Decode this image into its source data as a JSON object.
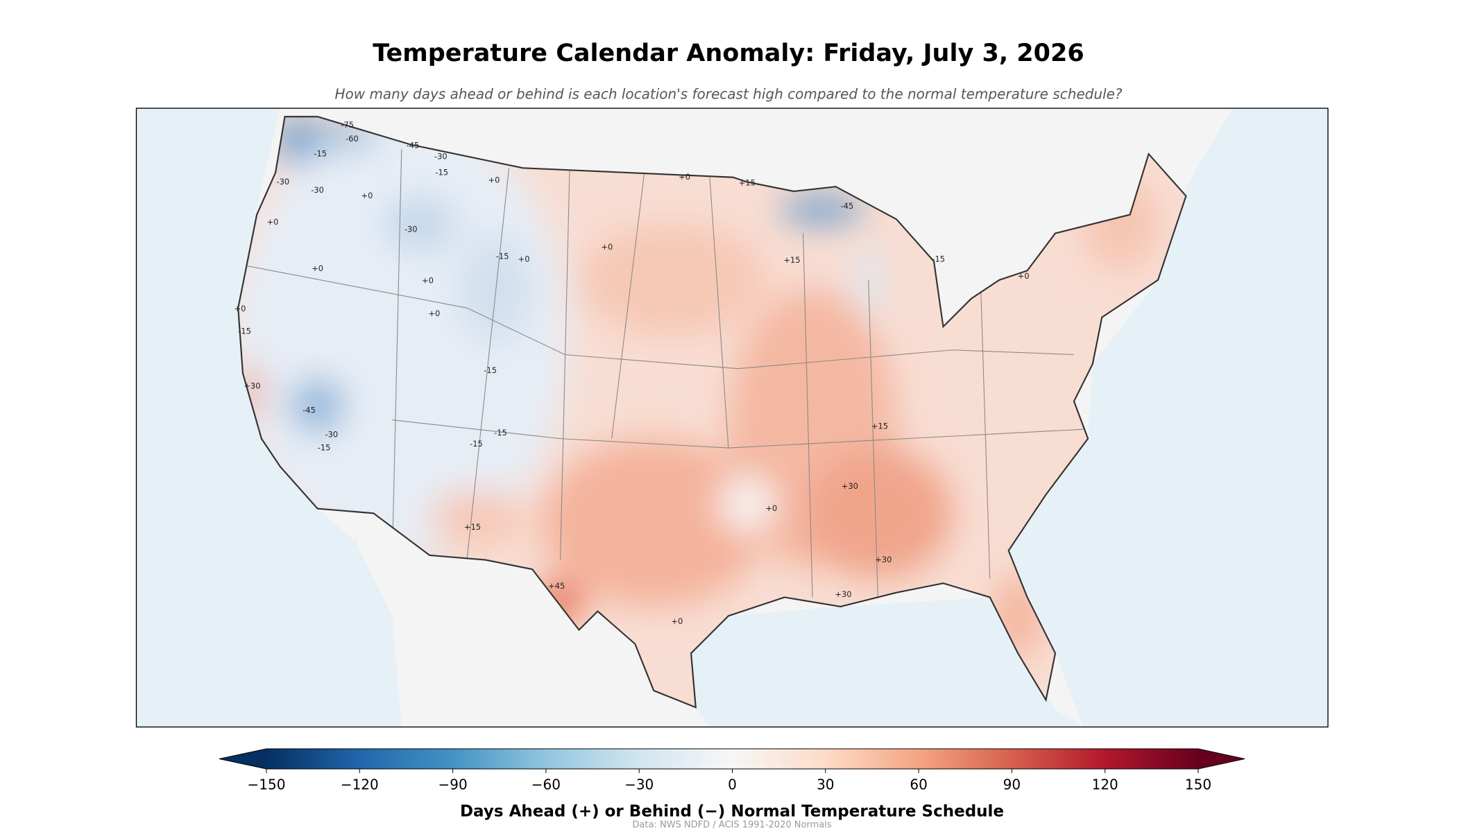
{
  "title": "Temperature Calendar Anomaly: Friday, July 3, 2026",
  "subtitle": "How many days ahead or behind is each location's forecast high compared to the normal temperature schedule?",
  "map": {
    "contour_labels": [
      "-75",
      "-60",
      "-15",
      "-30",
      "-30",
      "+0",
      "-45",
      "-30",
      "-15",
      "+0",
      "+0",
      "-30",
      "+0",
      "+0",
      "-15",
      "+0",
      "+0",
      "+0",
      "+0",
      "+15",
      "-45",
      "+15",
      "-15",
      "+0",
      "+0",
      "-15",
      "-15",
      "+30",
      "-45",
      "-30",
      "-15",
      "-15",
      "-15",
      "+15",
      "+30",
      "+0",
      "+15",
      "+30",
      "+45",
      "+30",
      "+0"
    ]
  },
  "colorbar": {
    "label": "Days Ahead (+) or Behind (−) Normal Temperature Schedule",
    "lim": [
      -150,
      150
    ],
    "ticks": [
      {
        "value": -150,
        "label": "−150"
      },
      {
        "value": -120,
        "label": "−120"
      },
      {
        "value": -90,
        "label": "−90"
      },
      {
        "value": -60,
        "label": "−60"
      },
      {
        "value": -30,
        "label": "−30"
      },
      0,
      30,
      60,
      90,
      120,
      150
    ],
    "colormap": [
      "#053061",
      "#2166ac",
      "#4393c3",
      "#92c5de",
      "#d1e5f0",
      "#f7f7f7",
      "#fddbc7",
      "#f4a582",
      "#d6604d",
      "#b2182b",
      "#67001f"
    ]
  },
  "source": "Data: NWS NDFD / ACIS 1991-2020 Normals"
}
